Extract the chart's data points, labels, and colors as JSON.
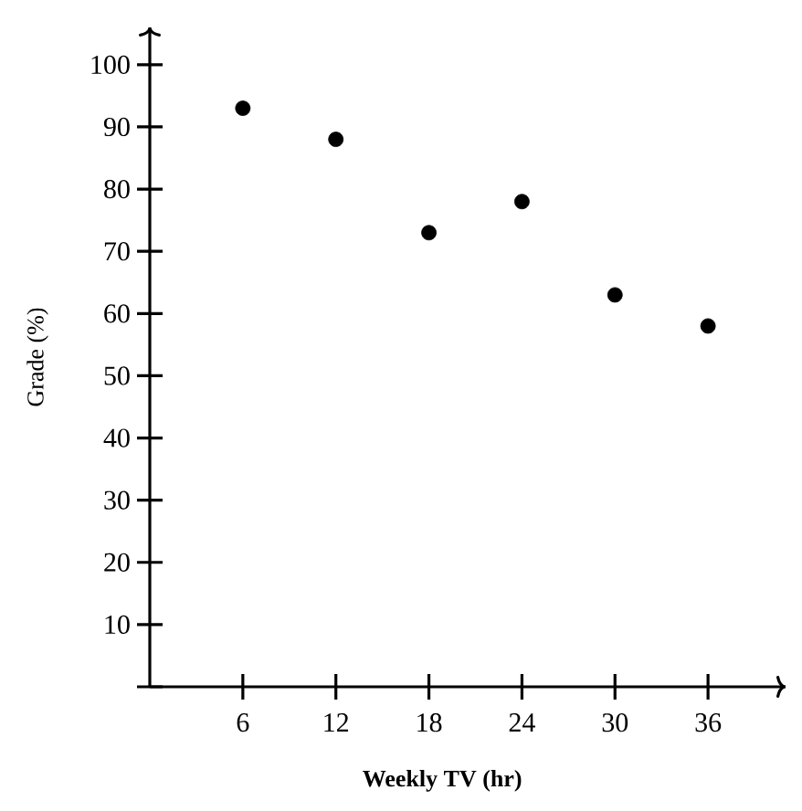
{
  "chart_data": {
    "type": "scatter",
    "xlabel": "**Weekly TV (hr)**",
    "ylabel": "Grade (%)",
    "x": [
      6,
      12,
      18,
      24,
      30,
      36
    ],
    "series": [
      {
        "color": "#000000",
        "values": [
          93,
          88,
          73,
          78,
          63,
          58
        ]
      }
    ],
    "xlim": [
      0,
      41
    ],
    "ylim": [
      0,
      106
    ],
    "xticks": [
      6,
      12,
      18,
      24,
      30,
      36
    ],
    "yticks": [
      {
        "value": 0,
        "label": null
      },
      10,
      20,
      30,
      40,
      50,
      60,
      70,
      80,
      90,
      100
    ],
    "grid": false
  }
}
